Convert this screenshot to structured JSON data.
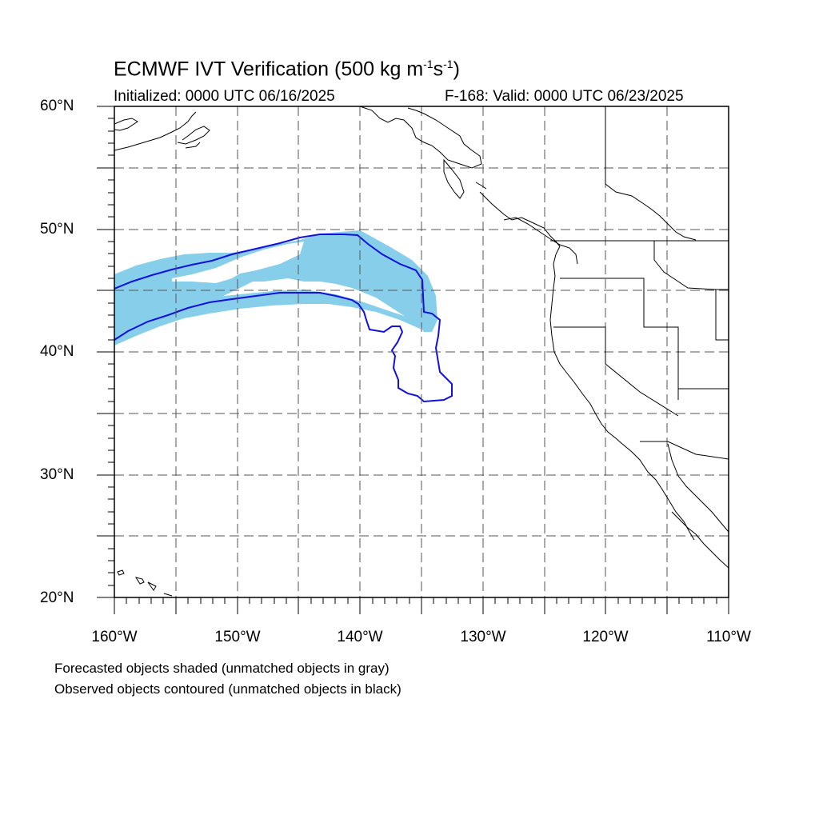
{
  "header": {
    "title": "ECMWF IVT Verification (500 kg m",
    "title_sup1": "-1",
    "title_mid": "s",
    "title_sup2": "-1",
    "title_end": ")",
    "initialized": "Initialized: 0000 UTC 06/16/2025",
    "valid": "F-168: Valid: 0000 UTC 06/23/2025"
  },
  "axes": {
    "lat_labels": [
      "60°N",
      "50°N",
      "40°N",
      "30°N",
      "20°N"
    ],
    "lon_labels": [
      "160°W",
      "150°W",
      "140°W",
      "130°W",
      "120°W",
      "110°W"
    ],
    "lat_range": [
      20,
      60
    ],
    "lon_range": [
      -160,
      -110
    ],
    "grid": "dashed, every 5 degrees"
  },
  "legend": {
    "line1": "Forecasted objects shaded (unmatched objects in gray)",
    "line2": "Observed objects contoured (unmatched objects in black)"
  },
  "colors": {
    "forecast_fill": "#87ceeb",
    "observed_contour": "#1010e0",
    "coastline": "#000000",
    "grid": "#555555"
  }
}
